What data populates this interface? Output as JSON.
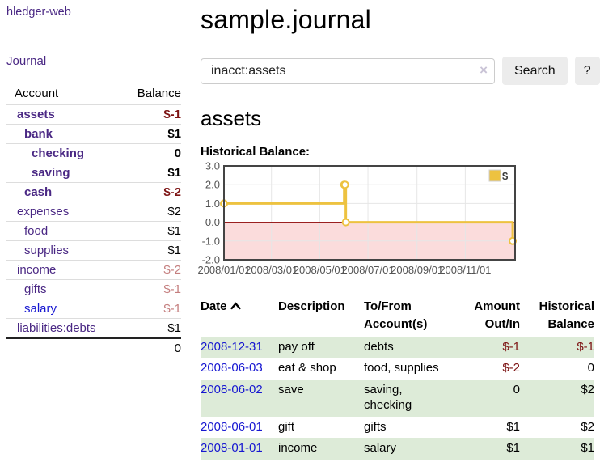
{
  "colors": {
    "link_purple": "#4a2884",
    "link_blue": "#1616d1",
    "negative": "#7d1414",
    "negative_faded": "#c47e7e",
    "row_shade_green": "#ddebd8",
    "chart_series": "#edc240",
    "chart_negative_fill": "#fbdcdc",
    "chart_zero_line": "#8b0000",
    "chart_grid": "#e6e6e6",
    "chart_border": "#444444",
    "axis_text": "#545454"
  },
  "sidebar": {
    "app_title": "hledger-web",
    "journal_label": "Journal",
    "accounts_table": {
      "headers": {
        "account": "Account",
        "balance": "Balance"
      },
      "rows": [
        {
          "name": "assets",
          "depth": 1,
          "bold": true,
          "balance": "$-1",
          "balance_tone": "negative"
        },
        {
          "name": "bank",
          "depth": 2,
          "bold": true,
          "balance": "$1",
          "balance_tone": "normal"
        },
        {
          "name": "checking",
          "depth": 3,
          "bold": true,
          "balance": "0",
          "balance_tone": "normal"
        },
        {
          "name": "saving",
          "depth": 3,
          "bold": true,
          "balance": "$1",
          "balance_tone": "normal"
        },
        {
          "name": "cash",
          "depth": 2,
          "bold": true,
          "balance": "$-2",
          "balance_tone": "negative"
        },
        {
          "name": "expenses",
          "depth": 1,
          "bold": false,
          "balance": "$2",
          "balance_tone": "normal"
        },
        {
          "name": "food",
          "depth": 2,
          "bold": false,
          "balance": "$1",
          "balance_tone": "normal"
        },
        {
          "name": "supplies",
          "depth": 2,
          "bold": false,
          "balance": "$1",
          "balance_tone": "normal"
        },
        {
          "name": "income",
          "depth": 1,
          "bold": false,
          "balance": "$-2",
          "balance_tone": "faded"
        },
        {
          "name": "gifts",
          "depth": 2,
          "bold": false,
          "balance": "$-1",
          "balance_tone": "faded"
        },
        {
          "name": "salary",
          "depth": 2,
          "bold": false,
          "balance": "$-1",
          "balance_tone": "faded",
          "link_style": "blue"
        },
        {
          "name": "liabilities:debts",
          "depth": 1,
          "bold": false,
          "balance": "$1",
          "balance_tone": "normal"
        }
      ],
      "total": "0"
    }
  },
  "main": {
    "title": "sample.journal",
    "search": {
      "value": "inacct:assets",
      "clear_icon": "×",
      "search_label": "Search",
      "help_label": "?"
    },
    "account_heading": "assets",
    "chart_label": "Historical Balance:"
  },
  "chart_data": {
    "type": "line",
    "step": true,
    "title": "Historical Balance:",
    "legend": "$",
    "legend_position": "top-right",
    "series": [
      {
        "name": "$",
        "points": [
          [
            "2008-01-01",
            1
          ],
          [
            "2008-06-01",
            2
          ],
          [
            "2008-06-02",
            2
          ],
          [
            "2008-06-03",
            0
          ],
          [
            "2008-12-31",
            -1
          ]
        ]
      }
    ],
    "ylim": [
      -2,
      3
    ],
    "yticks": [
      3,
      2,
      1,
      0,
      -1,
      -2
    ],
    "xtick_labels": [
      "2008/01/01",
      "2008/03/01",
      "2008/05/01",
      "2008/07/01",
      "2008/09/01",
      "2008/11/01"
    ],
    "x_start": "2008-01-01",
    "x_span_days": 368,
    "grid": true
  },
  "register": {
    "headers": {
      "date": "Date",
      "description": "Description",
      "accounts": "To/From Account(s)",
      "amount": "Amount Out/In",
      "balance": "Historical Balance"
    },
    "rows": [
      {
        "date": "2008-12-31",
        "description": "pay off",
        "accounts": "debts",
        "amount": "$-1",
        "amount_negative": true,
        "balance": "$-1",
        "balance_negative": true,
        "shaded": true
      },
      {
        "date": "2008-06-03",
        "description": "eat & shop",
        "accounts": "food, supplies",
        "amount": "$-2",
        "amount_negative": true,
        "balance": "0",
        "balance_negative": false,
        "shaded": false
      },
      {
        "date": "2008-06-02",
        "description": "save",
        "accounts": "saving, checking",
        "amount": "0",
        "amount_negative": false,
        "balance": "$2",
        "balance_negative": false,
        "shaded": true
      },
      {
        "date": "2008-06-01",
        "description": "gift",
        "accounts": "gifts",
        "amount": "$1",
        "amount_negative": false,
        "balance": "$2",
        "balance_negative": false,
        "shaded": false
      },
      {
        "date": "2008-01-01",
        "description": "income",
        "accounts": "salary",
        "amount": "$1",
        "amount_negative": false,
        "balance": "$1",
        "balance_negative": false,
        "shaded": true
      }
    ]
  }
}
